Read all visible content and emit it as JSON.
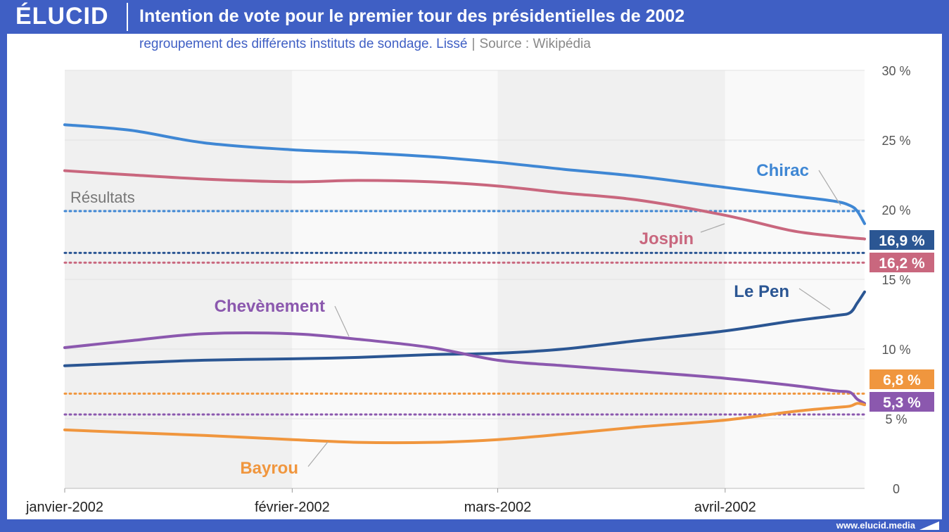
{
  "header": {
    "logo": "ÉLUCID",
    "title": "Intention de vote pour le premier tour des présidentielles de 2002",
    "subtitle": "regroupement des différents instituts de sondage. Lissé",
    "separator": "|",
    "source": "Source : Wikipédia"
  },
  "footer": {
    "url": "www.elucid.media"
  },
  "colors": {
    "chirac": "#3f87d4",
    "jospin": "#c9677e",
    "lepen": "#2b5693",
    "chevenement": "#8b58ae",
    "bayrou": "#f0963e",
    "results_text": "#777777"
  },
  "chart_data": {
    "type": "line",
    "ylim": [
      0,
      30
    ],
    "y_ticks": [
      {
        "value": 0,
        "label": "0"
      },
      {
        "value": 5,
        "label": "5 %"
      },
      {
        "value": 10,
        "label": "10 %"
      },
      {
        "value": 15,
        "label": "15 %"
      },
      {
        "value": 20,
        "label": "20 %"
      },
      {
        "value": 25,
        "label": "25 %"
      },
      {
        "value": 30,
        "label": "30 %"
      }
    ],
    "x_start": "2002-01-01",
    "x_end": "2002-04-20",
    "x_ticks": [
      {
        "date": "2002-01-01",
        "label": "janvier-2002"
      },
      {
        "date": "2002-02-01",
        "label": "février-2002"
      },
      {
        "date": "2002-03-01",
        "label": "mars-2002"
      },
      {
        "date": "2002-04-01",
        "label": "avril-2002"
      }
    ],
    "results_label": "Résultats",
    "series": [
      {
        "key": "chirac",
        "name": "Chirac",
        "points": [
          [
            "2002-01-01",
            26.1
          ],
          [
            "2002-01-10",
            25.7
          ],
          [
            "2002-01-20",
            24.8
          ],
          [
            "2002-02-01",
            24.3
          ],
          [
            "2002-02-10",
            24.1
          ],
          [
            "2002-02-20",
            23.8
          ],
          [
            "2002-03-01",
            23.4
          ],
          [
            "2002-03-10",
            22.9
          ],
          [
            "2002-03-20",
            22.4
          ],
          [
            "2002-04-01",
            21.6
          ],
          [
            "2002-04-10",
            21.0
          ],
          [
            "2002-04-16",
            20.6
          ],
          [
            "2002-04-18",
            20.3
          ],
          [
            "2002-04-19",
            19.9
          ],
          [
            "2002-04-20",
            19.0
          ]
        ],
        "result": 19.9,
        "result_label": ""
      },
      {
        "key": "jospin",
        "name": "Jospin",
        "points": [
          [
            "2002-01-01",
            22.8
          ],
          [
            "2002-01-10",
            22.5
          ],
          [
            "2002-01-20",
            22.2
          ],
          [
            "2002-02-01",
            22.0
          ],
          [
            "2002-02-10",
            22.1
          ],
          [
            "2002-02-20",
            22.0
          ],
          [
            "2002-03-01",
            21.7
          ],
          [
            "2002-03-10",
            21.2
          ],
          [
            "2002-03-20",
            20.7
          ],
          [
            "2002-04-01",
            19.6
          ],
          [
            "2002-04-10",
            18.5
          ],
          [
            "2002-04-16",
            18.1
          ],
          [
            "2002-04-20",
            17.9
          ]
        ],
        "result": 16.2,
        "result_label": "16,2 %"
      },
      {
        "key": "lepen",
        "name": "Le Pen",
        "points": [
          [
            "2002-01-01",
            8.8
          ],
          [
            "2002-01-10",
            9.0
          ],
          [
            "2002-01-20",
            9.2
          ],
          [
            "2002-02-01",
            9.3
          ],
          [
            "2002-02-10",
            9.4
          ],
          [
            "2002-02-20",
            9.6
          ],
          [
            "2002-03-01",
            9.7
          ],
          [
            "2002-03-10",
            10.0
          ],
          [
            "2002-03-20",
            10.6
          ],
          [
            "2002-04-01",
            11.3
          ],
          [
            "2002-04-10",
            12.0
          ],
          [
            "2002-04-16",
            12.4
          ],
          [
            "2002-04-18",
            12.6
          ],
          [
            "2002-04-19",
            13.3
          ],
          [
            "2002-04-20",
            14.1
          ]
        ],
        "result": 16.9,
        "result_label": "16,9 %"
      },
      {
        "key": "chevenement",
        "name": "Chevènement",
        "points": [
          [
            "2002-01-01",
            10.1
          ],
          [
            "2002-01-10",
            10.6
          ],
          [
            "2002-01-20",
            11.1
          ],
          [
            "2002-02-01",
            11.1
          ],
          [
            "2002-02-10",
            10.7
          ],
          [
            "2002-02-20",
            10.1
          ],
          [
            "2002-03-01",
            9.2
          ],
          [
            "2002-03-10",
            8.8
          ],
          [
            "2002-03-20",
            8.4
          ],
          [
            "2002-04-01",
            7.9
          ],
          [
            "2002-04-10",
            7.4
          ],
          [
            "2002-04-16",
            7.0
          ],
          [
            "2002-04-18",
            6.9
          ],
          [
            "2002-04-19",
            6.4
          ],
          [
            "2002-04-20",
            6.1
          ]
        ],
        "result": 5.3,
        "result_label": "5,3 %"
      },
      {
        "key": "bayrou",
        "name": "Bayrou",
        "points": [
          [
            "2002-01-01",
            4.2
          ],
          [
            "2002-01-10",
            4.0
          ],
          [
            "2002-01-20",
            3.8
          ],
          [
            "2002-02-01",
            3.5
          ],
          [
            "2002-02-10",
            3.3
          ],
          [
            "2002-02-20",
            3.3
          ],
          [
            "2002-03-01",
            3.5
          ],
          [
            "2002-03-10",
            3.9
          ],
          [
            "2002-03-20",
            4.4
          ],
          [
            "2002-04-01",
            4.9
          ],
          [
            "2002-04-10",
            5.5
          ],
          [
            "2002-04-16",
            5.8
          ],
          [
            "2002-04-18",
            5.9
          ],
          [
            "2002-04-19",
            6.1
          ],
          [
            "2002-04-20",
            6.0
          ]
        ],
        "result": 6.8,
        "result_label": "6,8 %"
      }
    ]
  }
}
